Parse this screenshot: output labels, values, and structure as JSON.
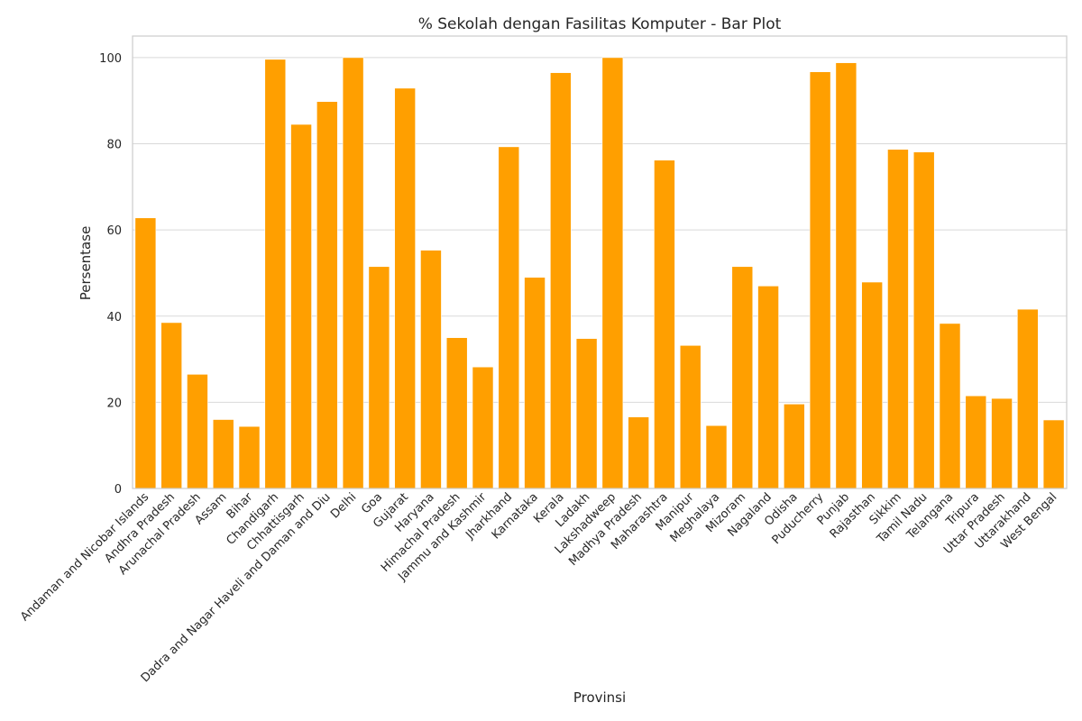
{
  "chart_data": {
    "type": "bar",
    "title": "% Sekolah dengan Fasilitas Komputer - Bar Plot",
    "xlabel": "Provinsi",
    "ylabel": "Persentase",
    "ylim": [
      0,
      105
    ],
    "yticks": [
      0,
      20,
      40,
      60,
      80,
      100
    ],
    "grid": true,
    "bar_color": "#ff9f00",
    "categories": [
      "Andaman and Nicobar Islands",
      "Andhra Pradesh",
      "Arunachal Pradesh",
      "Assam",
      "Bihar",
      "Chandigarh",
      "Chhattisgarh",
      "Dadra and Nagar Haveli and Daman and Diu",
      "Delhi",
      "Goa",
      "Gujarat",
      "Haryana",
      "Himachal Pradesh",
      "Jammu and Kashmir",
      "Jharkhand",
      "Karnataka",
      "Kerala",
      "Ladakh",
      "Lakshadweep",
      "Madhya Pradesh",
      "Maharashtra",
      "Manipur",
      "Meghalaya",
      "Mizoram",
      "Nagaland",
      "Odisha",
      "Puducherry",
      "Punjab",
      "Rajasthan",
      "Sikkim",
      "Tamil Nadu",
      "Telangana",
      "Tripura",
      "Uttar Pradesh",
      "Uttarakhand",
      "West Bengal"
    ],
    "values": [
      62.8,
      38.5,
      26.5,
      16.0,
      14.4,
      99.6,
      84.5,
      89.8,
      100.0,
      51.5,
      92.9,
      55.3,
      35.0,
      28.2,
      79.3,
      49.0,
      96.5,
      34.8,
      100.0,
      16.6,
      76.2,
      33.2,
      14.6,
      51.5,
      47.0,
      19.6,
      96.7,
      98.8,
      47.9,
      78.7,
      78.1,
      38.3,
      21.5,
      20.9,
      41.6,
      15.9
    ]
  }
}
